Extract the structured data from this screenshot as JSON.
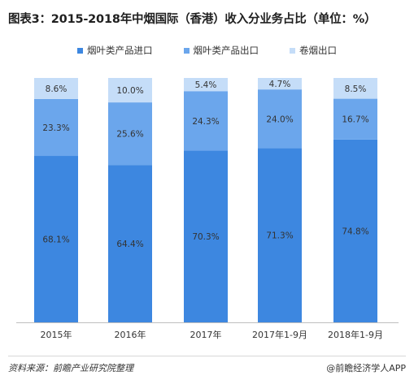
{
  "title": "图表3：2015-2018年中烟国际（香港）收入分业务占比（单位：%）",
  "source": "资料来源：前瞻产业研究院整理",
  "brand": "@前瞻经济学人APP",
  "colors": {
    "import": "#3d87e0",
    "export": "#6ba6ec",
    "cigarette": "#c5ddf8",
    "label_text": "#333333"
  },
  "chart_data": {
    "type": "bar",
    "stacked": true,
    "categories": [
      "2015年",
      "2016年",
      "2017年",
      "2017年1-9月",
      "2018年1-9月"
    ],
    "series": [
      {
        "name": "烟叶类产品进口",
        "values": [
          68.1,
          64.4,
          70.3,
          71.3,
          74.8
        ]
      },
      {
        "name": "烟叶类产品出口",
        "values": [
          23.3,
          25.6,
          24.3,
          24.0,
          16.7
        ]
      },
      {
        "name": "卷烟出口",
        "values": [
          8.6,
          10.0,
          5.4,
          4.7,
          8.5
        ]
      }
    ],
    "value_labels": [
      [
        "68.1%",
        "64.4%",
        "70.3%",
        "71.3%",
        "74.8%"
      ],
      [
        "23.3%",
        "25.6%",
        "24.3%",
        "24.0%",
        "16.7%"
      ],
      [
        "8.6%",
        "10.0%",
        "5.4%",
        "4.7%",
        "8.5%"
      ]
    ],
    "legend_position": "top-center",
    "ylim": [
      0,
      100
    ],
    "grid": false
  }
}
